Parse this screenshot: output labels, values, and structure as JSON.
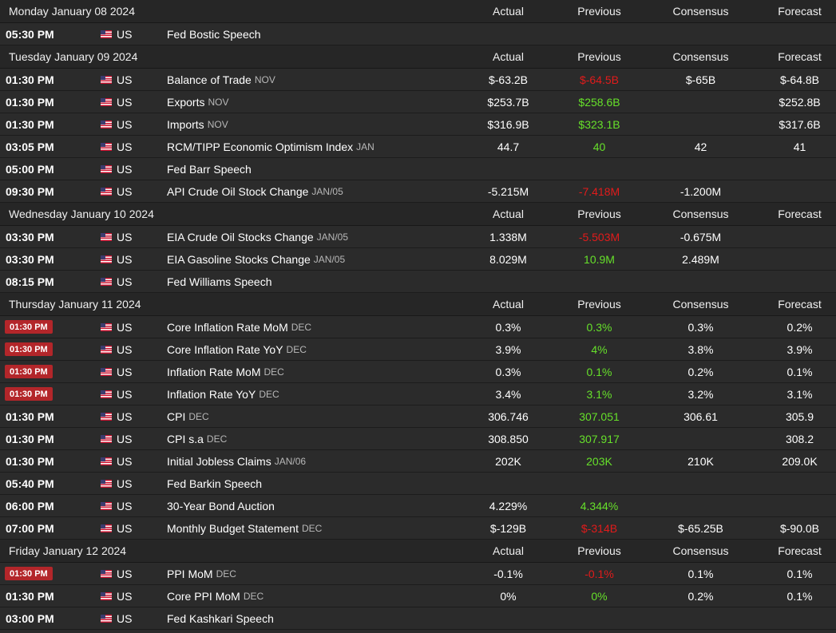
{
  "colors": {
    "up": "#66e02a",
    "down": "#e11b1b",
    "neutral": "#ffffff",
    "high_impact": "#b3262a"
  },
  "days": [
    {
      "date": "Monday January 08 2024",
      "headers": {
        "actual": "Actual",
        "previous": "Previous",
        "consensus": "Consensus",
        "forecast": "Forecast"
      },
      "events": [
        {
          "time": "05:30 PM",
          "high": false,
          "flag": "us-flag-icon",
          "country": "US",
          "event": "Fed Bostic Speech",
          "ref": "",
          "actual": "",
          "previous": "",
          "previous_trend": "neutral",
          "consensus": "",
          "forecast": ""
        }
      ]
    },
    {
      "date": "Tuesday January 09 2024",
      "headers": {
        "actual": "Actual",
        "previous": "Previous",
        "consensus": "Consensus",
        "forecast": "Forecast"
      },
      "events": [
        {
          "time": "01:30 PM",
          "high": false,
          "flag": "us-flag-icon",
          "country": "US",
          "event": "Balance of Trade",
          "ref": "NOV",
          "actual": "$-63.2B",
          "previous": "$-64.5B",
          "previous_trend": "down",
          "consensus": "$-65B",
          "forecast": "$-64.8B"
        },
        {
          "time": "01:30 PM",
          "high": false,
          "flag": "us-flag-icon",
          "country": "US",
          "event": "Exports",
          "ref": "NOV",
          "actual": "$253.7B",
          "previous": "$258.6B",
          "previous_trend": "up",
          "consensus": "",
          "forecast": "$252.8B"
        },
        {
          "time": "01:30 PM",
          "high": false,
          "flag": "us-flag-icon",
          "country": "US",
          "event": "Imports",
          "ref": "NOV",
          "actual": "$316.9B",
          "previous": "$323.1B",
          "previous_trend": "up",
          "consensus": "",
          "forecast": "$317.6B"
        },
        {
          "time": "03:05 PM",
          "high": false,
          "flag": "us-flag-icon",
          "country": "US",
          "event": "RCM/TIPP Economic Optimism Index",
          "ref": "JAN",
          "actual": "44.7",
          "previous": "40",
          "previous_trend": "up",
          "consensus": "42",
          "forecast": "41"
        },
        {
          "time": "05:00 PM",
          "high": false,
          "flag": "us-flag-icon",
          "country": "US",
          "event": "Fed Barr Speech",
          "ref": "",
          "actual": "",
          "previous": "",
          "previous_trend": "neutral",
          "consensus": "",
          "forecast": ""
        },
        {
          "time": "09:30 PM",
          "high": false,
          "flag": "us-flag-icon",
          "country": "US",
          "event": "API Crude Oil Stock Change",
          "ref": "JAN/05",
          "actual": "-5.215M",
          "previous": "-7.418M",
          "previous_trend": "down",
          "consensus": "-1.200M",
          "forecast": ""
        }
      ]
    },
    {
      "date": "Wednesday January 10 2024",
      "headers": {
        "actual": "Actual",
        "previous": "Previous",
        "consensus": "Consensus",
        "forecast": "Forecast"
      },
      "events": [
        {
          "time": "03:30 PM",
          "high": false,
          "flag": "us-flag-icon",
          "country": "US",
          "event": "EIA Crude Oil Stocks Change",
          "ref": "JAN/05",
          "actual": "1.338M",
          "previous": "-5.503M",
          "previous_trend": "down",
          "consensus": "-0.675M",
          "forecast": ""
        },
        {
          "time": "03:30 PM",
          "high": false,
          "flag": "us-flag-icon",
          "country": "US",
          "event": "EIA Gasoline Stocks Change",
          "ref": "JAN/05",
          "actual": "8.029M",
          "previous": "10.9M",
          "previous_trend": "up",
          "consensus": "2.489M",
          "forecast": ""
        },
        {
          "time": "08:15 PM",
          "high": false,
          "flag": "us-flag-icon",
          "country": "US",
          "event": "Fed Williams Speech",
          "ref": "",
          "actual": "",
          "previous": "",
          "previous_trend": "neutral",
          "consensus": "",
          "forecast": ""
        }
      ]
    },
    {
      "date": "Thursday January 11 2024",
      "headers": {
        "actual": "Actual",
        "previous": "Previous",
        "consensus": "Consensus",
        "forecast": "Forecast"
      },
      "events": [
        {
          "time": "01:30 PM",
          "high": true,
          "flag": "us-flag-icon",
          "country": "US",
          "event": "Core Inflation Rate MoM",
          "ref": "DEC",
          "actual": "0.3%",
          "previous": "0.3%",
          "previous_trend": "up",
          "consensus": "0.3%",
          "forecast": "0.2%"
        },
        {
          "time": "01:30 PM",
          "high": true,
          "flag": "us-flag-icon",
          "country": "US",
          "event": "Core Inflation Rate YoY",
          "ref": "DEC",
          "actual": "3.9%",
          "previous": "4%",
          "previous_trend": "up",
          "consensus": "3.8%",
          "forecast": "3.9%"
        },
        {
          "time": "01:30 PM",
          "high": true,
          "flag": "us-flag-icon",
          "country": "US",
          "event": "Inflation Rate MoM",
          "ref": "DEC",
          "actual": "0.3%",
          "previous": "0.1%",
          "previous_trend": "up",
          "consensus": "0.2%",
          "forecast": "0.1%"
        },
        {
          "time": "01:30 PM",
          "high": true,
          "flag": "us-flag-icon",
          "country": "US",
          "event": "Inflation Rate YoY",
          "ref": "DEC",
          "actual": "3.4%",
          "previous": "3.1%",
          "previous_trend": "up",
          "consensus": "3.2%",
          "forecast": "3.1%"
        },
        {
          "time": "01:30 PM",
          "high": false,
          "flag": "us-flag-icon",
          "country": "US",
          "event": "CPI",
          "ref": "DEC",
          "actual": "306.746",
          "previous": "307.051",
          "previous_trend": "up",
          "consensus": "306.61",
          "forecast": "305.9"
        },
        {
          "time": "01:30 PM",
          "high": false,
          "flag": "us-flag-icon",
          "country": "US",
          "event": "CPI s.a",
          "ref": "DEC",
          "actual": "308.850",
          "previous": "307.917",
          "previous_trend": "up",
          "consensus": "",
          "forecast": "308.2"
        },
        {
          "time": "01:30 PM",
          "high": false,
          "flag": "us-flag-icon",
          "country": "US",
          "event": "Initial Jobless Claims",
          "ref": "JAN/06",
          "actual": "202K",
          "previous": "203K",
          "previous_trend": "up",
          "consensus": "210K",
          "forecast": "209.0K"
        },
        {
          "time": "05:40 PM",
          "high": false,
          "flag": "us-flag-icon",
          "country": "US",
          "event": "Fed Barkin Speech",
          "ref": "",
          "actual": "",
          "previous": "",
          "previous_trend": "neutral",
          "consensus": "",
          "forecast": ""
        },
        {
          "time": "06:00 PM",
          "high": false,
          "flag": "us-flag-icon",
          "country": "US",
          "event": "30-Year Bond Auction",
          "ref": "",
          "actual": "4.229%",
          "previous": "4.344%",
          "previous_trend": "up",
          "consensus": "",
          "forecast": ""
        },
        {
          "time": "07:00 PM",
          "high": false,
          "flag": "us-flag-icon",
          "country": "US",
          "event": "Monthly Budget Statement",
          "ref": "DEC",
          "actual": "$-129B",
          "previous": "$-314B",
          "previous_trend": "down",
          "consensus": "$-65.25B",
          "forecast": "$-90.0B"
        }
      ]
    },
    {
      "date": "Friday January 12 2024",
      "headers": {
        "actual": "Actual",
        "previous": "Previous",
        "consensus": "Consensus",
        "forecast": "Forecast"
      },
      "events": [
        {
          "time": "01:30 PM",
          "high": true,
          "flag": "us-flag-icon",
          "country": "US",
          "event": "PPI MoM",
          "ref": "DEC",
          "actual": "-0.1%",
          "previous": "-0.1%",
          "previous_trend": "down",
          "consensus": "0.1%",
          "forecast": "0.1%"
        },
        {
          "time": "01:30 PM",
          "high": false,
          "flag": "us-flag-icon",
          "country": "US",
          "event": "Core PPI MoM",
          "ref": "DEC",
          "actual": "0%",
          "previous": "0%",
          "previous_trend": "up",
          "consensus": "0.2%",
          "forecast": "0.1%"
        },
        {
          "time": "03:00 PM",
          "high": false,
          "flag": "us-flag-icon",
          "country": "US",
          "event": "Fed Kashkari Speech",
          "ref": "",
          "actual": "",
          "previous": "",
          "previous_trend": "neutral",
          "consensus": "",
          "forecast": ""
        }
      ]
    }
  ]
}
